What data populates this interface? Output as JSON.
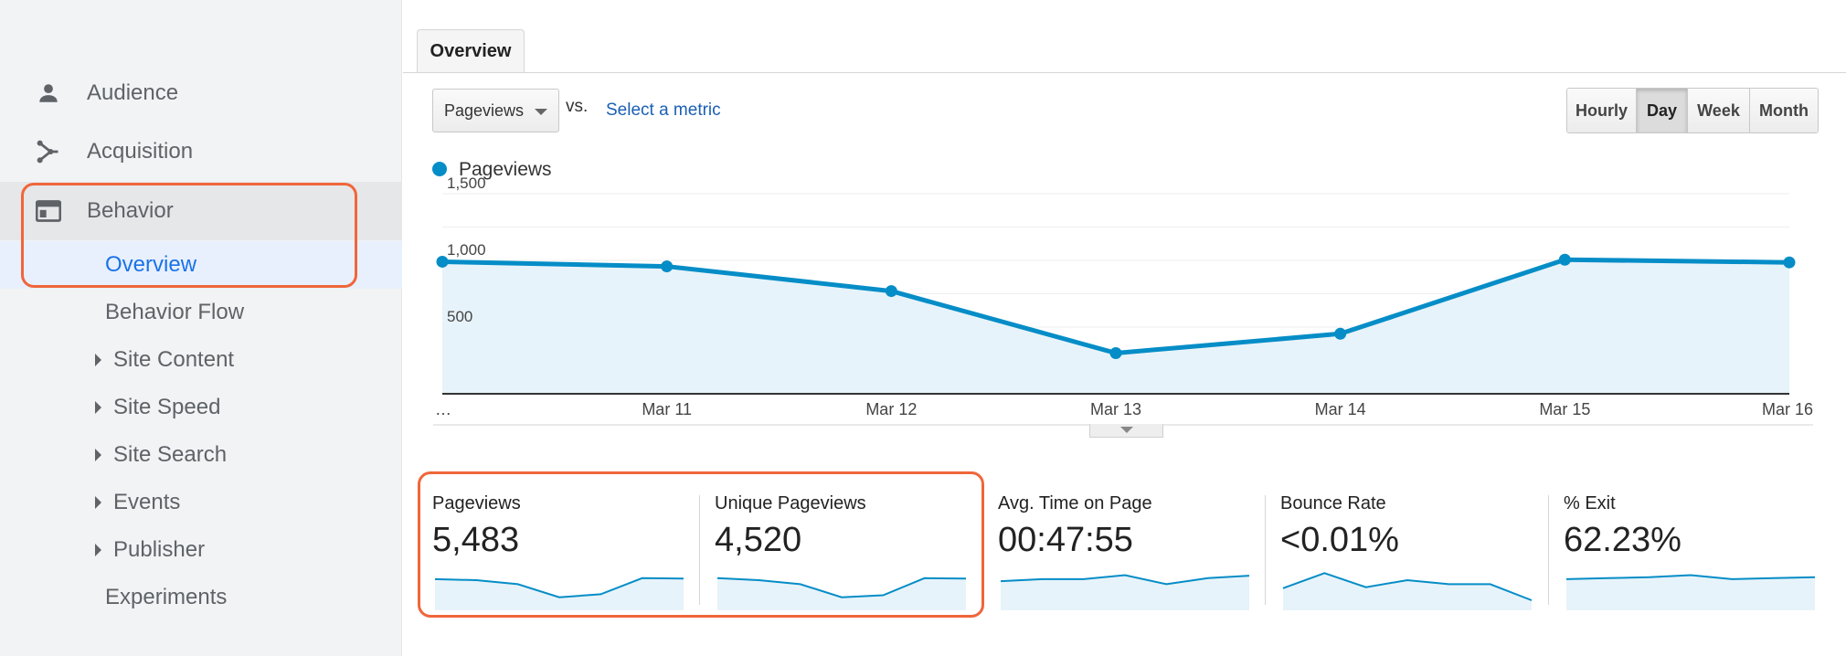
{
  "sidebar": {
    "audience": {
      "label": "Audience",
      "icon": "person-icon"
    },
    "acquisition": {
      "label": "Acquisition",
      "icon": "acquisition-icon"
    },
    "behavior": {
      "label": "Behavior",
      "icon": "browser-window-icon"
    },
    "overview": {
      "label": "Overview"
    },
    "behavior_flow": {
      "label": "Behavior Flow"
    },
    "site_content": {
      "label": "Site Content"
    },
    "site_speed": {
      "label": "Site Speed"
    },
    "site_search": {
      "label": "Site Search"
    },
    "events": {
      "label": "Events"
    },
    "publisher": {
      "label": "Publisher"
    },
    "experiments": {
      "label": "Experiments"
    }
  },
  "tabs": {
    "overview": "Overview"
  },
  "controls": {
    "metric_select": "Pageviews",
    "vs_label": "vs.",
    "select_metric": "Select a metric",
    "time_buttons": [
      {
        "label": "Hourly",
        "active": false
      },
      {
        "label": "Day",
        "active": true
      },
      {
        "label": "Week",
        "active": false
      },
      {
        "label": "Month",
        "active": false
      }
    ]
  },
  "legend": {
    "label": "Pageviews",
    "color": "#058dc7"
  },
  "chart_data": {
    "type": "area",
    "series": [
      {
        "name": "Pageviews",
        "values": [
          990,
          955,
          770,
          305,
          450,
          1005,
          985
        ]
      }
    ],
    "categories": [
      "…",
      "Mar 11",
      "Mar 12",
      "Mar 13",
      "Mar 14",
      "Mar 15",
      "Mar 16"
    ],
    "y_ticks": [
      "1,500",
      "1,000",
      "500"
    ],
    "ylim": [
      0,
      1500
    ],
    "grid": true,
    "line_color": "#058dc7",
    "fill_color": "#e7f3fa"
  },
  "scorecards": [
    {
      "label": "Pageviews",
      "value": "5,483",
      "spark": [
        0.55,
        0.5,
        0.3,
        -0.35,
        -0.2,
        0.6,
        0.58
      ]
    },
    {
      "label": "Unique Pageviews",
      "value": "4,520",
      "spark": [
        0.6,
        0.5,
        0.3,
        -0.35,
        -0.25,
        0.6,
        0.58
      ]
    },
    {
      "label": "Avg. Time on Page",
      "value": "00:47:55",
      "spark": [
        0.45,
        0.55,
        0.55,
        0.75,
        0.3,
        0.6,
        0.72
      ]
    },
    {
      "label": "Bounce Rate",
      "value": "<0.01%",
      "spark": [
        0.1,
        0.85,
        0.15,
        0.5,
        0.3,
        0.3,
        -0.5
      ]
    },
    {
      "label": "% Exit",
      "value": "62.23%",
      "spark": [
        0.55,
        0.6,
        0.65,
        0.75,
        0.55,
        0.6,
        0.65
      ]
    }
  ]
}
